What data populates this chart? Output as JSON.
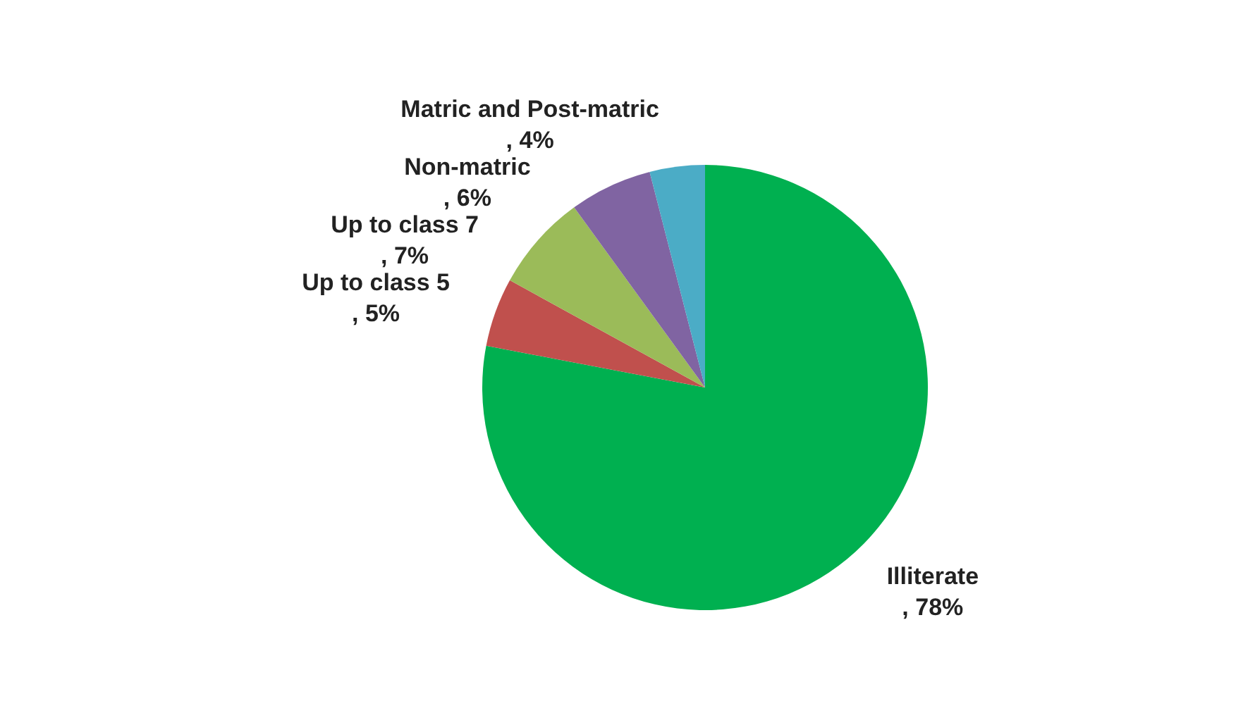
{
  "chart_data": {
    "type": "pie",
    "categories": [
      "Illiterate",
      "Up to class 5",
      "Up to class 7",
      "Non-matric",
      "Matric and Post-matric"
    ],
    "values": [
      78,
      5,
      7,
      6,
      4
    ],
    "colors": [
      "#00b050",
      "#c0504d",
      "#9bbb59",
      "#8064a2",
      "#4bacc6"
    ],
    "value_labels": [
      ", 78%",
      ", 5%",
      ", 7%",
      ", 6%",
      ", 4%"
    ],
    "legend": false
  }
}
